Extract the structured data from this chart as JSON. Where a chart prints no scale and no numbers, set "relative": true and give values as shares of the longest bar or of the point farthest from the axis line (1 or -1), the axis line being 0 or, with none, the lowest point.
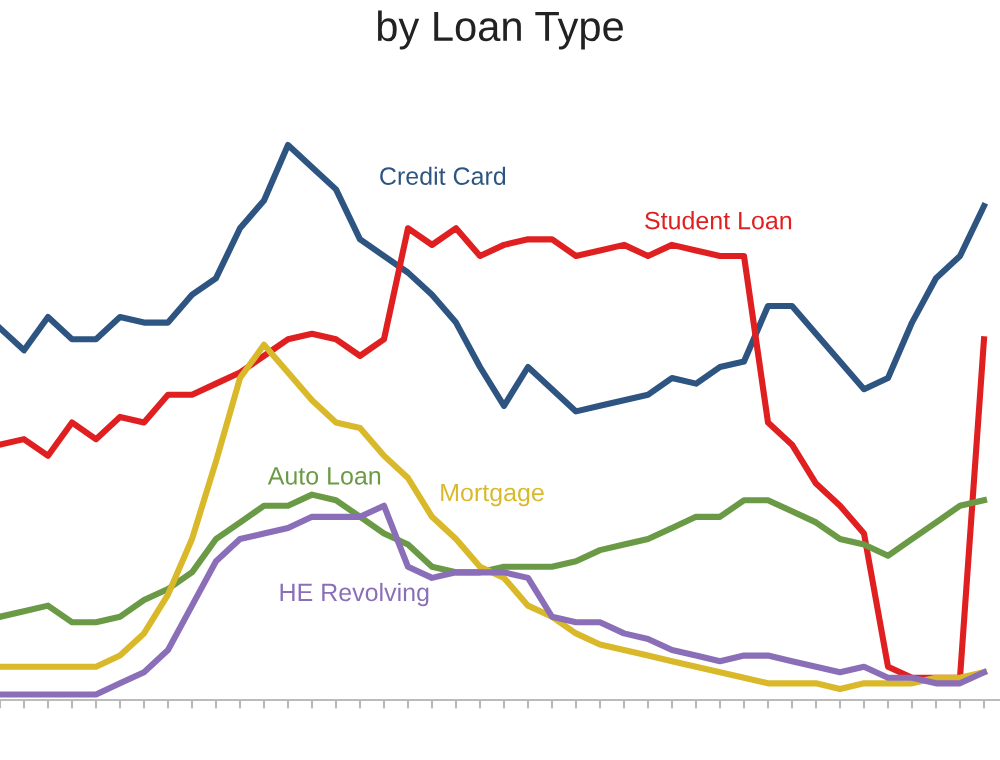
{
  "chart_data": {
    "type": "line",
    "title": "by Loan Type",
    "relative": true,
    "grid": false,
    "legend": false,
    "line_style": "solid",
    "marker": "none",
    "categories": [
      null,
      null,
      null,
      null,
      null,
      null,
      null,
      null,
      null,
      null,
      null,
      null,
      null,
      null,
      null,
      null,
      null,
      null,
      null,
      null,
      null,
      null,
      null,
      null,
      null,
      null,
      null,
      null,
      null,
      null,
      null,
      null,
      null,
      null,
      null,
      null,
      null,
      null,
      null,
      null,
      null,
      null
    ],
    "series": [
      {
        "name": "Credit Card",
        "color": "#2e5582",
        "values": [
          0.67,
          0.63,
          0.69,
          0.65,
          0.65,
          0.69,
          0.68,
          0.68,
          0.73,
          0.76,
          0.85,
          0.9,
          1.0,
          0.96,
          0.92,
          0.83,
          0.8,
          0.77,
          0.73,
          0.68,
          0.6,
          0.53,
          0.6,
          0.56,
          0.52,
          0.53,
          0.54,
          0.55,
          0.58,
          0.57,
          0.6,
          0.61,
          0.71,
          0.71,
          0.66,
          0.61,
          0.56,
          0.58,
          0.68,
          0.76,
          0.8,
          0.89
        ]
      },
      {
        "name": "Student Loan",
        "color": "#e02020",
        "values": [
          0.46,
          0.47,
          0.44,
          0.5,
          0.47,
          0.51,
          0.5,
          0.55,
          0.55,
          0.57,
          0.59,
          0.62,
          0.65,
          0.66,
          0.65,
          0.62,
          0.65,
          0.85,
          0.82,
          0.85,
          0.8,
          0.82,
          0.83,
          0.83,
          0.8,
          0.81,
          0.82,
          0.8,
          0.82,
          0.81,
          0.8,
          0.8,
          0.5,
          0.46,
          0.39,
          0.35,
          0.3,
          0.06,
          0.04,
          0.04,
          0.04,
          0.65
        ]
      },
      {
        "name": "Auto Loan",
        "color": "#6a9a45",
        "values": [
          0.15,
          0.16,
          0.17,
          0.14,
          0.14,
          0.15,
          0.18,
          0.2,
          0.23,
          0.29,
          0.32,
          0.35,
          0.35,
          0.37,
          0.36,
          0.33,
          0.3,
          0.28,
          0.24,
          0.23,
          0.23,
          0.24,
          0.24,
          0.24,
          0.25,
          0.27,
          0.28,
          0.29,
          0.31,
          0.33,
          0.33,
          0.36,
          0.36,
          0.34,
          0.32,
          0.29,
          0.28,
          0.26,
          0.29,
          0.32,
          0.35,
          0.36
        ]
      },
      {
        "name": "Mortgage",
        "color": "#d9b92a",
        "values": [
          0.06,
          0.06,
          0.06,
          0.06,
          0.06,
          0.08,
          0.12,
          0.19,
          0.29,
          0.43,
          0.58,
          0.64,
          0.59,
          0.54,
          0.5,
          0.49,
          0.44,
          0.4,
          0.33,
          0.29,
          0.24,
          0.22,
          0.17,
          0.15,
          0.12,
          0.1,
          0.09,
          0.08,
          0.07,
          0.06,
          0.05,
          0.04,
          0.03,
          0.03,
          0.03,
          0.02,
          0.03,
          0.03,
          0.03,
          0.04,
          0.04,
          0.05
        ]
      },
      {
        "name": "HE Revolving",
        "color": "#8a6fb8",
        "values": [
          0.01,
          0.01,
          0.01,
          0.01,
          0.01,
          0.03,
          0.05,
          0.09,
          0.17,
          0.25,
          0.29,
          0.3,
          0.31,
          0.33,
          0.33,
          0.33,
          0.35,
          0.24,
          0.22,
          0.23,
          0.23,
          0.23,
          0.22,
          0.15,
          0.14,
          0.14,
          0.12,
          0.11,
          0.09,
          0.08,
          0.07,
          0.08,
          0.08,
          0.07,
          0.06,
          0.05,
          0.06,
          0.04,
          0.04,
          0.03,
          0.03,
          0.05
        ]
      }
    ]
  }
}
